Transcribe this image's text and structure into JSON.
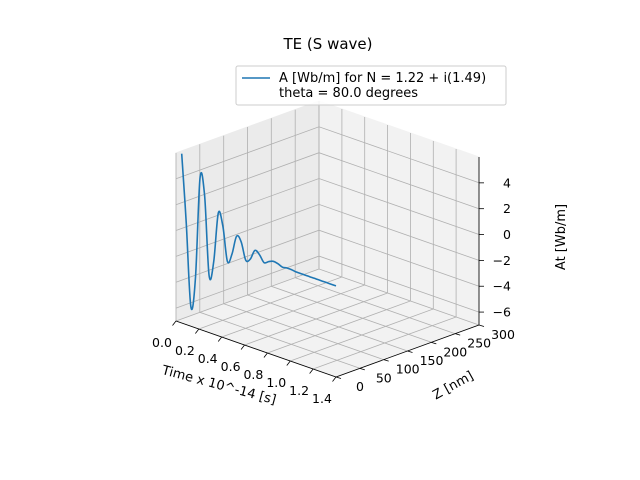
{
  "chart_data": {
    "type": "line",
    "projection": "3d",
    "title": "TE (S wave)",
    "xlabel": "Time x 10^-14 [s]",
    "ylabel": "Z [nm]",
    "zlabel": "At [Wb/m]",
    "xlim": [
      0.0,
      1.4
    ],
    "ylim": [
      0,
      300
    ],
    "zlim": [
      -7,
      6
    ],
    "x_ticks": [
      "0.0",
      "0.2",
      "0.4",
      "0.6",
      "0.8",
      "1.0",
      "1.2",
      "1.4"
    ],
    "y_ticks": [
      "0",
      "50",
      "100",
      "150",
      "200",
      "250",
      "300"
    ],
    "z_ticks": [
      "−6",
      "−4",
      "−2",
      "0",
      "2",
      "4"
    ],
    "grid": true,
    "legend_position": "top-right",
    "legend_lines": [
      "A [Wb/m] for N = 1.22 + i(1.49)",
      "theta = 80.0 degrees"
    ],
    "series": [
      {
        "name": "A [Wb/m] for N = 1.22 + i(1.49)",
        "color": "#1f77b4",
        "z_plane": "y = 0",
        "x": [
          0.05,
          0.09,
          0.13,
          0.17,
          0.21,
          0.25,
          0.29,
          0.33,
          0.37,
          0.41,
          0.45,
          0.49,
          0.53,
          0.57,
          0.61,
          0.65,
          0.69,
          0.73,
          0.77,
          0.81,
          0.85,
          0.89,
          0.93,
          0.97,
          1.01,
          1.05,
          1.09,
          1.13,
          1.17,
          1.21,
          1.25,
          1.29,
          1.33,
          1.37,
          1.4
        ],
        "y": [
          6.1,
          0.8,
          -5.5,
          -3.2,
          4.7,
          3.5,
          -2.6,
          -1.4,
          2.5,
          1.6,
          -1.0,
          -0.3,
          1.2,
          0.9,
          -0.4,
          -0.2,
          0.6,
          0.4,
          -0.1,
          0.1,
          0.25,
          0.2,
          0.05,
          0.1,
          0.1,
          0.05,
          0.05,
          0.05,
          0.05,
          0.05,
          0.05,
          0.05,
          0.05,
          0.05,
          0.05
        ]
      }
    ]
  }
}
